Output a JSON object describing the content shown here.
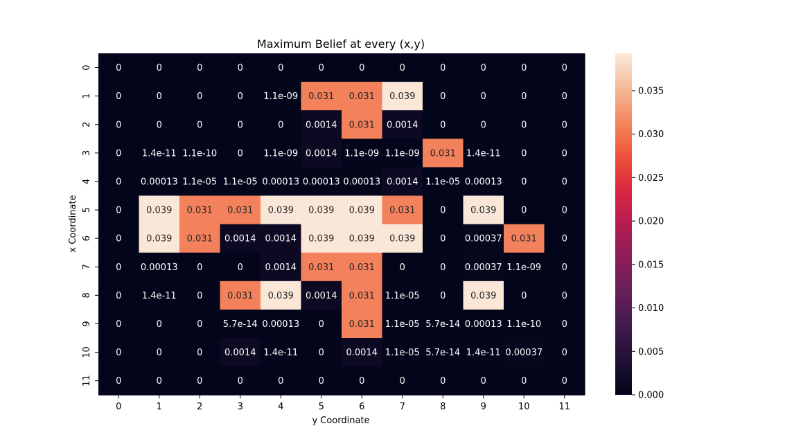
{
  "chart_data": {
    "type": "heatmap",
    "title": "Maximum Belief at every (x,y)",
    "xlabel": "y Coordinate",
    "ylabel": "x Coordinate",
    "x_ticks": [
      "0",
      "1",
      "2",
      "3",
      "4",
      "5",
      "6",
      "7",
      "8",
      "9",
      "10",
      "11"
    ],
    "y_ticks": [
      "0",
      "1",
      "2",
      "3",
      "4",
      "5",
      "6",
      "7",
      "8",
      "9",
      "10",
      "11"
    ],
    "colorbar": {
      "range": [
        0,
        0.0393
      ],
      "ticks": [
        "0.000",
        "0.005",
        "0.010",
        "0.015",
        "0.020",
        "0.025",
        "0.030",
        "0.035"
      ],
      "tick_values": [
        0,
        0.005,
        0.01,
        0.015,
        0.02,
        0.025,
        0.03,
        0.035
      ],
      "colormap": "rocket"
    },
    "cells": [
      [
        {
          "v": 0,
          "t": "0"
        },
        {
          "v": 0,
          "t": "0"
        },
        {
          "v": 0,
          "t": "0"
        },
        {
          "v": 0,
          "t": "0"
        },
        {
          "v": 0,
          "t": "0"
        },
        {
          "v": 0,
          "t": "0"
        },
        {
          "v": 0,
          "t": "0"
        },
        {
          "v": 0,
          "t": "0"
        },
        {
          "v": 0,
          "t": "0"
        },
        {
          "v": 0,
          "t": "0"
        },
        {
          "v": 0,
          "t": "0"
        },
        {
          "v": 0,
          "t": "0"
        }
      ],
      [
        {
          "v": 0,
          "t": "0"
        },
        {
          "v": 0,
          "t": "0"
        },
        {
          "v": 0,
          "t": "0"
        },
        {
          "v": 0,
          "t": "0"
        },
        {
          "v": 1.1e-09,
          "t": "1.1e-09"
        },
        {
          "v": 0.031,
          "t": "0.031"
        },
        {
          "v": 0.031,
          "t": "0.031"
        },
        {
          "v": 0.039,
          "t": "0.039"
        },
        {
          "v": 0,
          "t": "0"
        },
        {
          "v": 0,
          "t": "0"
        },
        {
          "v": 0,
          "t": "0"
        },
        {
          "v": 0,
          "t": "0"
        }
      ],
      [
        {
          "v": 0,
          "t": "0"
        },
        {
          "v": 0,
          "t": "0"
        },
        {
          "v": 0,
          "t": "0"
        },
        {
          "v": 0,
          "t": "0"
        },
        {
          "v": 0,
          "t": "0"
        },
        {
          "v": 0.0014,
          "t": "0.0014"
        },
        {
          "v": 0.031,
          "t": "0.031"
        },
        {
          "v": 0.0014,
          "t": "0.0014"
        },
        {
          "v": 0,
          "t": "0"
        },
        {
          "v": 0,
          "t": "0"
        },
        {
          "v": 0,
          "t": "0"
        },
        {
          "v": 0,
          "t": "0"
        }
      ],
      [
        {
          "v": 0,
          "t": "0"
        },
        {
          "v": 1.4e-11,
          "t": "1.4e-11"
        },
        {
          "v": 1.1e-10,
          "t": "1.1e-10"
        },
        {
          "v": 0,
          "t": "0"
        },
        {
          "v": 1.1e-09,
          "t": "1.1e-09"
        },
        {
          "v": 0.0014,
          "t": "0.0014"
        },
        {
          "v": 1.1e-09,
          "t": "1.1e-09"
        },
        {
          "v": 1.1e-09,
          "t": "1.1e-09"
        },
        {
          "v": 0.031,
          "t": "0.031"
        },
        {
          "v": 1.4e-11,
          "t": "1.4e-11"
        },
        {
          "v": 0,
          "t": "0"
        },
        {
          "v": 0,
          "t": "0"
        }
      ],
      [
        {
          "v": 0,
          "t": "0"
        },
        {
          "v": 0.00013,
          "t": "0.00013"
        },
        {
          "v": 1.1e-05,
          "t": "1.1e-05"
        },
        {
          "v": 1.1e-05,
          "t": "1.1e-05"
        },
        {
          "v": 0.00013,
          "t": "0.00013"
        },
        {
          "v": 0.00013,
          "t": "0.00013"
        },
        {
          "v": 0.00013,
          "t": "0.00013"
        },
        {
          "v": 0.0014,
          "t": "0.0014"
        },
        {
          "v": 1.1e-05,
          "t": "1.1e-05"
        },
        {
          "v": 0.00013,
          "t": "0.00013"
        },
        {
          "v": 0,
          "t": "0"
        },
        {
          "v": 0,
          "t": "0"
        }
      ],
      [
        {
          "v": 0,
          "t": "0"
        },
        {
          "v": 0.039,
          "t": "0.039"
        },
        {
          "v": 0.031,
          "t": "0.031"
        },
        {
          "v": 0.031,
          "t": "0.031"
        },
        {
          "v": 0.039,
          "t": "0.039"
        },
        {
          "v": 0.039,
          "t": "0.039"
        },
        {
          "v": 0.039,
          "t": "0.039"
        },
        {
          "v": 0.031,
          "t": "0.031"
        },
        {
          "v": 0,
          "t": "0"
        },
        {
          "v": 0.039,
          "t": "0.039"
        },
        {
          "v": 0,
          "t": "0"
        },
        {
          "v": 0,
          "t": "0"
        }
      ],
      [
        {
          "v": 0,
          "t": "0"
        },
        {
          "v": 0.039,
          "t": "0.039"
        },
        {
          "v": 0.031,
          "t": "0.031"
        },
        {
          "v": 0.0014,
          "t": "0.0014"
        },
        {
          "v": 0.0014,
          "t": "0.0014"
        },
        {
          "v": 0.039,
          "t": "0.039"
        },
        {
          "v": 0.039,
          "t": "0.039"
        },
        {
          "v": 0.039,
          "t": "0.039"
        },
        {
          "v": 0,
          "t": "0"
        },
        {
          "v": 0.00037,
          "t": "0.00037"
        },
        {
          "v": 0.031,
          "t": "0.031"
        },
        {
          "v": 0,
          "t": "0"
        }
      ],
      [
        {
          "v": 0,
          "t": "0"
        },
        {
          "v": 0.00013,
          "t": "0.00013"
        },
        {
          "v": 0,
          "t": "0"
        },
        {
          "v": 0,
          "t": "0"
        },
        {
          "v": 0.0014,
          "t": "0.0014"
        },
        {
          "v": 0.031,
          "t": "0.031"
        },
        {
          "v": 0.031,
          "t": "0.031"
        },
        {
          "v": 0,
          "t": "0"
        },
        {
          "v": 0,
          "t": "0"
        },
        {
          "v": 0.00037,
          "t": "0.00037"
        },
        {
          "v": 1.1e-09,
          "t": "1.1e-09"
        },
        {
          "v": 0,
          "t": "0"
        }
      ],
      [
        {
          "v": 0,
          "t": "0"
        },
        {
          "v": 1.4e-11,
          "t": "1.4e-11"
        },
        {
          "v": 0,
          "t": "0"
        },
        {
          "v": 0.031,
          "t": "0.031"
        },
        {
          "v": 0.039,
          "t": "0.039"
        },
        {
          "v": 0.0014,
          "t": "0.0014"
        },
        {
          "v": 0.031,
          "t": "0.031"
        },
        {
          "v": 1.1e-05,
          "t": "1.1e-05"
        },
        {
          "v": 0,
          "t": "0"
        },
        {
          "v": 0.039,
          "t": "0.039"
        },
        {
          "v": 0,
          "t": "0"
        },
        {
          "v": 0,
          "t": "0"
        }
      ],
      [
        {
          "v": 0,
          "t": "0"
        },
        {
          "v": 0,
          "t": "0"
        },
        {
          "v": 0,
          "t": "0"
        },
        {
          "v": 5.7e-14,
          "t": "5.7e-14"
        },
        {
          "v": 0.00013,
          "t": "0.00013"
        },
        {
          "v": 0,
          "t": "0"
        },
        {
          "v": 0.031,
          "t": "0.031"
        },
        {
          "v": 1.1e-05,
          "t": "1.1e-05"
        },
        {
          "v": 5.7e-14,
          "t": "5.7e-14"
        },
        {
          "v": 0.00013,
          "t": "0.00013"
        },
        {
          "v": 1.1e-10,
          "t": "1.1e-10"
        },
        {
          "v": 0,
          "t": "0"
        }
      ],
      [
        {
          "v": 0,
          "t": "0"
        },
        {
          "v": 0,
          "t": "0"
        },
        {
          "v": 0,
          "t": "0"
        },
        {
          "v": 0.0014,
          "t": "0.0014"
        },
        {
          "v": 1.4e-11,
          "t": "1.4e-11"
        },
        {
          "v": 0,
          "t": "0"
        },
        {
          "v": 0.0014,
          "t": "0.0014"
        },
        {
          "v": 1.1e-05,
          "t": "1.1e-05"
        },
        {
          "v": 5.7e-14,
          "t": "5.7e-14"
        },
        {
          "v": 1.4e-11,
          "t": "1.4e-11"
        },
        {
          "v": 0.00037,
          "t": "0.00037"
        },
        {
          "v": 0,
          "t": "0"
        }
      ],
      [
        {
          "v": 0,
          "t": "0"
        },
        {
          "v": 0,
          "t": "0"
        },
        {
          "v": 0,
          "t": "0"
        },
        {
          "v": 0,
          "t": "0"
        },
        {
          "v": 0,
          "t": "0"
        },
        {
          "v": 0,
          "t": "0"
        },
        {
          "v": 0,
          "t": "0"
        },
        {
          "v": 0,
          "t": "0"
        },
        {
          "v": 0,
          "t": "0"
        },
        {
          "v": 0,
          "t": "0"
        },
        {
          "v": 0,
          "t": "0"
        },
        {
          "v": 0,
          "t": "0"
        }
      ]
    ]
  }
}
